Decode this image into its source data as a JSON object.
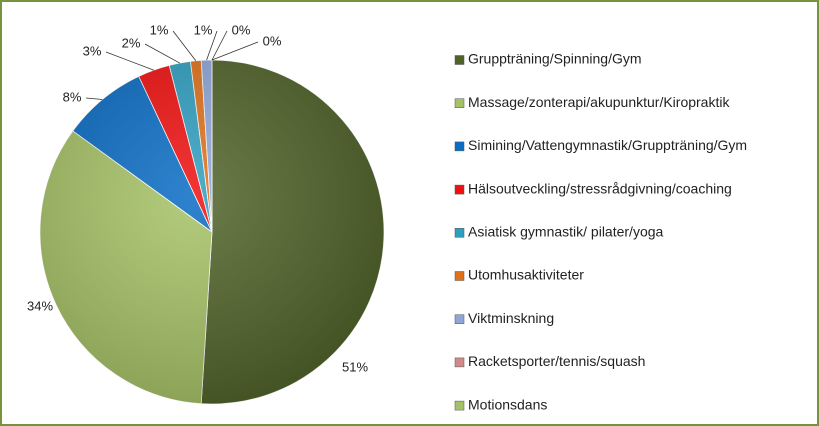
{
  "chart_data": {
    "type": "pie",
    "categories": [
      "Gruppträning/Spinning/Gym",
      "Massage/zonterapi/akupunktur/Kiropraktik",
      "Simining/Vattengymnastik/Gruppträning/Gym",
      "Hälsoutveckling/stressrådgivning/coaching",
      "Asiatisk gymnastik/ pilater/yoga",
      "Utomhusaktiviteter",
      "Viktminskning",
      "Racketsporter/tennis/squash",
      "Motionsdans"
    ],
    "values": [
      51,
      34,
      8,
      3,
      2,
      1,
      1,
      0,
      0
    ],
    "value_labels": [
      "51%",
      "34%",
      "8%",
      "3%",
      "2%",
      "1%",
      "1%",
      "0%",
      "0%"
    ],
    "colors": [
      "#4f6228",
      "#a6c266",
      "#0a6cc4",
      "#f01010",
      "#2f9fc0",
      "#e0711a",
      "#8ea6d8",
      "#d08a88",
      "#a6c266"
    ],
    "legend": "right"
  }
}
